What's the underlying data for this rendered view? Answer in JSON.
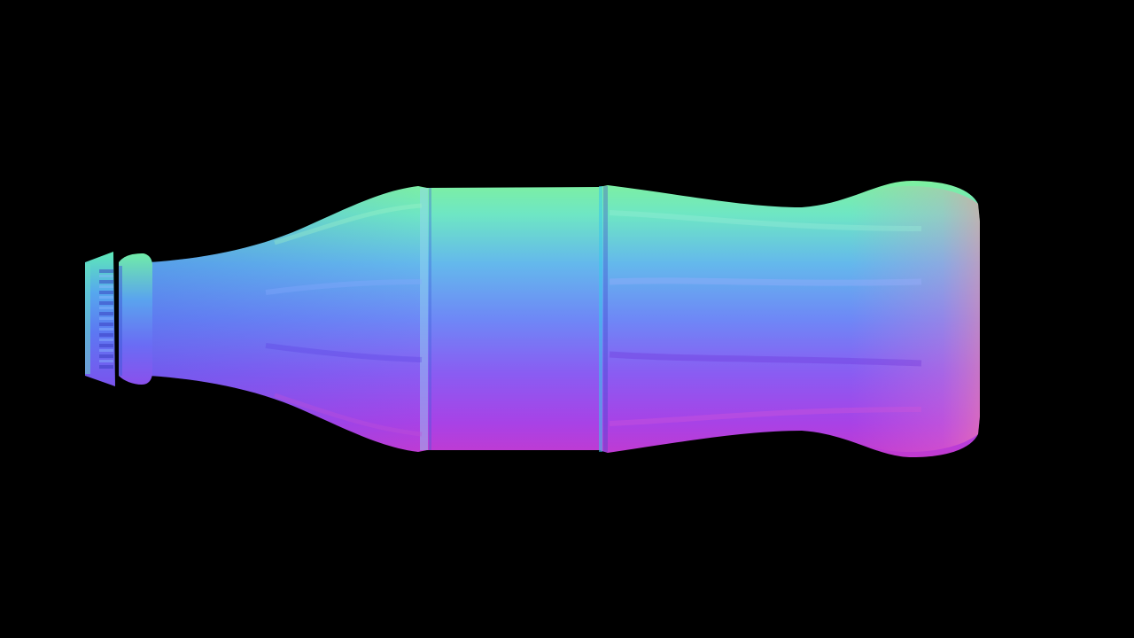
{
  "scene": {
    "background_color": "#000000",
    "object": "bottle-icon",
    "render_style": "normal-map",
    "colors": {
      "top_edge": "#78f0a0",
      "mid_top": "#5ad2e6",
      "center": "#6e8cf5",
      "mid_bottom": "#8c50f0",
      "bottom_edge": "#c83cd2",
      "cap_top": "#60e6b4",
      "cap_body": "#5a8cf0",
      "base_highlight": "#ff7ab4"
    }
  }
}
